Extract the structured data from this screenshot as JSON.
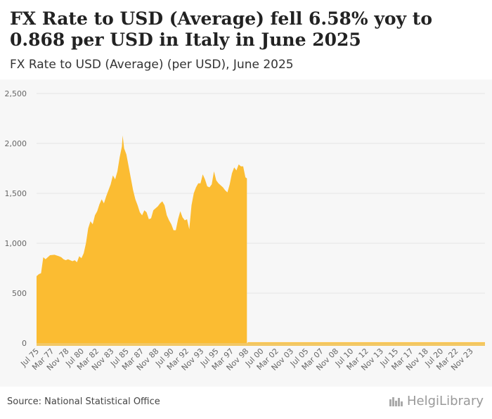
{
  "header": {
    "title": "FX Rate to USD (Average) fell 6.58% yoy to 0.868 per USD in Italy in June 2025",
    "subtitle": "FX Rate to USD (Average) (per USD), June 2025"
  },
  "footer": {
    "source": "Source: National Statistical Office",
    "logo_text": "HelgiLibrary"
  },
  "colors": {
    "area": "#fbbc32",
    "grid": "#e6e6e6",
    "bg": "#f7f7f7",
    "tick": "#666666",
    "xaxis_strip": "#f2c866"
  },
  "chart_data": {
    "type": "area",
    "title": "",
    "xlabel": "",
    "ylabel": "",
    "ylim": [
      0,
      2500
    ],
    "yticks": [
      0,
      500,
      1000,
      1500,
      2000,
      2500
    ],
    "ytick_labels": [
      "0",
      "500",
      "1,000",
      "1,500",
      "2,000",
      "2,500"
    ],
    "grid": true,
    "x_tick_labels": [
      "Jul 75",
      "Mar 77",
      "Nov 78",
      "Jul 80",
      "Mar 82",
      "Nov 83",
      "Jul 85",
      "Mar 87",
      "Nov 88",
      "Jul 90",
      "Mar 92",
      "Nov 93",
      "Jul 95",
      "Mar 97",
      "Nov 98",
      "Jul 00",
      "Mar 02",
      "Nov 03",
      "Jul 05",
      "Mar 07",
      "Nov 08",
      "Jul 10",
      "Mar 12",
      "Nov 13",
      "Jul 15",
      "Mar 17",
      "Nov 18",
      "Jul 20",
      "Mar 22",
      "Nov 23"
    ],
    "x_range": [
      "Jul 1975",
      "Jun 2025"
    ],
    "series": [
      {
        "values_note_dates": "monthly points, date as YYYY-MM",
        "points": [
          [
            "1975-07",
            670
          ],
          [
            "1975-10",
            690
          ],
          [
            "1976-01",
            700
          ],
          [
            "1976-04",
            860
          ],
          [
            "1976-07",
            840
          ],
          [
            "1976-10",
            860
          ],
          [
            "1977-01",
            880
          ],
          [
            "1977-07",
            885
          ],
          [
            "1978-01",
            870
          ],
          [
            "1978-04",
            860
          ],
          [
            "1978-07",
            840
          ],
          [
            "1978-10",
            830
          ],
          [
            "1979-01",
            840
          ],
          [
            "1979-04",
            830
          ],
          [
            "1979-07",
            820
          ],
          [
            "1979-10",
            830
          ],
          [
            "1980-01",
            810
          ],
          [
            "1980-04",
            870
          ],
          [
            "1980-07",
            850
          ],
          [
            "1980-10",
            900
          ],
          [
            "1981-01",
            1000
          ],
          [
            "1981-04",
            1150
          ],
          [
            "1981-07",
            1220
          ],
          [
            "1981-10",
            1190
          ],
          [
            "1982-01",
            1280
          ],
          [
            "1982-04",
            1320
          ],
          [
            "1982-07",
            1390
          ],
          [
            "1982-10",
            1440
          ],
          [
            "1983-01",
            1400
          ],
          [
            "1983-04",
            1470
          ],
          [
            "1983-07",
            1530
          ],
          [
            "1983-10",
            1590
          ],
          [
            "1984-01",
            1680
          ],
          [
            "1984-04",
            1640
          ],
          [
            "1984-07",
            1720
          ],
          [
            "1984-10",
            1860
          ],
          [
            "1985-01",
            1970
          ],
          [
            "1985-02",
            2080
          ],
          [
            "1985-04",
            1950
          ],
          [
            "1985-07",
            1890
          ],
          [
            "1985-10",
            1770
          ],
          [
            "1986-01",
            1650
          ],
          [
            "1986-04",
            1530
          ],
          [
            "1986-07",
            1440
          ],
          [
            "1986-10",
            1380
          ],
          [
            "1987-01",
            1310
          ],
          [
            "1987-04",
            1280
          ],
          [
            "1987-07",
            1330
          ],
          [
            "1987-10",
            1310
          ],
          [
            "1988-01",
            1240
          ],
          [
            "1988-04",
            1250
          ],
          [
            "1988-07",
            1330
          ],
          [
            "1988-10",
            1350
          ],
          [
            "1989-01",
            1370
          ],
          [
            "1989-04",
            1400
          ],
          [
            "1989-07",
            1420
          ],
          [
            "1989-10",
            1380
          ],
          [
            "1990-01",
            1280
          ],
          [
            "1990-04",
            1230
          ],
          [
            "1990-07",
            1190
          ],
          [
            "1990-10",
            1130
          ],
          [
            "1991-01",
            1130
          ],
          [
            "1991-04",
            1240
          ],
          [
            "1991-07",
            1320
          ],
          [
            "1991-10",
            1260
          ],
          [
            "1992-01",
            1230
          ],
          [
            "1992-04",
            1240
          ],
          [
            "1992-07",
            1140
          ],
          [
            "1992-10",
            1380
          ],
          [
            "1993-01",
            1500
          ],
          [
            "1993-04",
            1560
          ],
          [
            "1993-07",
            1600
          ],
          [
            "1993-10",
            1600
          ],
          [
            "1994-01",
            1690
          ],
          [
            "1994-04",
            1640
          ],
          [
            "1994-07",
            1570
          ],
          [
            "1994-10",
            1560
          ],
          [
            "1995-01",
            1590
          ],
          [
            "1995-04",
            1720
          ],
          [
            "1995-07",
            1630
          ],
          [
            "1995-10",
            1600
          ],
          [
            "1996-01",
            1580
          ],
          [
            "1996-04",
            1560
          ],
          [
            "1996-07",
            1530
          ],
          [
            "1996-10",
            1510
          ],
          [
            "1997-01",
            1590
          ],
          [
            "1997-04",
            1700
          ],
          [
            "1997-07",
            1760
          ],
          [
            "1997-10",
            1730
          ],
          [
            "1998-01",
            1790
          ],
          [
            "1998-04",
            1770
          ],
          [
            "1998-07",
            1770
          ],
          [
            "1998-10",
            1660
          ],
          [
            "1998-12",
            1650
          ]
        ]
      }
    ],
    "tail": {
      "from": "1999-01",
      "to": "2025-06",
      "value_note": "near zero after euro adoption",
      "approx_value": 1
    }
  }
}
